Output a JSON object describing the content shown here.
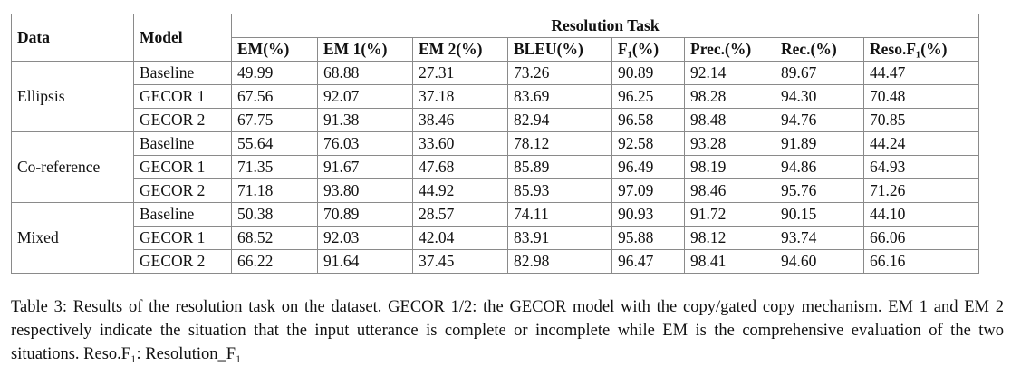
{
  "table": {
    "header": {
      "data": "Data",
      "model": "Model",
      "group": "Resolution Task",
      "columns": [
        "EM(%)",
        "EM 1(%)",
        "EM 2(%)",
        "BLEU(%)",
        "F₁(%)",
        "Prec.(%)",
        "Rec.(%)",
        "Reso.F₁(%)"
      ]
    },
    "groups": [
      {
        "data": "Ellipsis",
        "rows": [
          {
            "model": "Baseline",
            "values": [
              "49.99",
              "68.88",
              "27.31",
              "73.26",
              "90.89",
              "92.14",
              "89.67",
              "44.47"
            ]
          },
          {
            "model": "GECOR 1",
            "values": [
              "67.56",
              "92.07",
              "37.18",
              "83.69",
              "96.25",
              "98.28",
              "94.30",
              "70.48"
            ]
          },
          {
            "model": "GECOR 2",
            "values": [
              "67.75",
              "91.38",
              "38.46",
              "82.94",
              "96.58",
              "98.48",
              "94.76",
              "70.85"
            ]
          }
        ]
      },
      {
        "data": "Co-reference",
        "rows": [
          {
            "model": "Baseline",
            "values": [
              "55.64",
              "76.03",
              "33.60",
              "78.12",
              "92.58",
              "93.28",
              "91.89",
              "44.24"
            ]
          },
          {
            "model": "GECOR 1",
            "values": [
              "71.35",
              "91.67",
              "47.68",
              "85.89",
              "96.49",
              "98.19",
              "94.86",
              "64.93"
            ]
          },
          {
            "model": "GECOR 2",
            "values": [
              "71.18",
              "93.80",
              "44.92",
              "85.93",
              "97.09",
              "98.46",
              "95.76",
              "71.26"
            ]
          }
        ]
      },
      {
        "data": "Mixed",
        "rows": [
          {
            "model": "Baseline",
            "values": [
              "50.38",
              "70.89",
              "28.57",
              "74.11",
              "90.93",
              "91.72",
              "90.15",
              "44.10"
            ]
          },
          {
            "model": "GECOR 1",
            "values": [
              "68.52",
              "92.03",
              "42.04",
              "83.91",
              "95.88",
              "98.12",
              "93.74",
              "66.06"
            ]
          },
          {
            "model": "GECOR 2",
            "values": [
              "66.22",
              "91.64",
              "37.45",
              "82.98",
              "96.47",
              "98.41",
              "94.60",
              "66.16"
            ]
          }
        ]
      }
    ]
  },
  "caption": "Table 3: Results of the resolution task on the dataset. GECOR 1/2: the GECOR model with the copy/gated copy mechanism. EM 1 and EM 2 respectively indicate the situation that the input utterance is complete or incomplete while EM is the comprehensive evaluation of the two situations. Reso.F₁: Resolution_F₁"
}
